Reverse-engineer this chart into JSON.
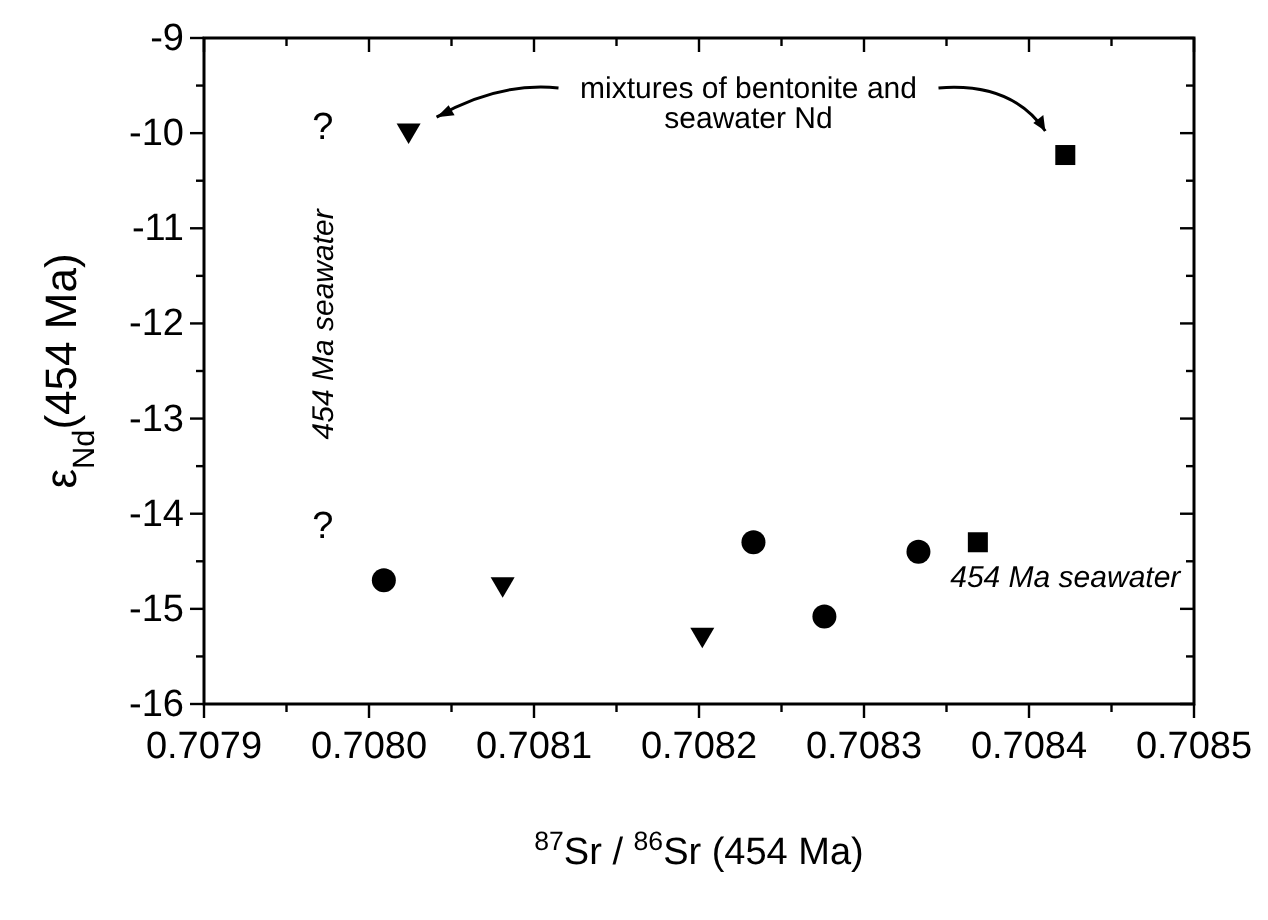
{
  "chart_data": {
    "type": "scatter",
    "xlabel": "$^{87}$Sr / $^{86}$Sr (454 Ma)",
    "ylabel": "ε$_{Nd}$(454 Ma)",
    "xlim": [
      0.7079,
      0.7085
    ],
    "ylim": [
      -16,
      -9
    ],
    "xticks": [
      0.7079,
      {
        "value": 0.70795,
        "label": null
      },
      {
        "value": 0.708,
        "label": "0.7080"
      },
      {
        "value": 0.70805,
        "label": null
      },
      0.7081,
      {
        "value": 0.70815,
        "label": null
      },
      0.7082,
      {
        "value": 0.70825,
        "label": null
      },
      0.7083,
      {
        "value": 0.70835,
        "label": null
      },
      0.7084,
      {
        "value": 0.70845,
        "label": null
      },
      0.7085
    ],
    "yticks": [
      -16,
      {
        "value": -15.5,
        "label": null
      },
      -15,
      {
        "value": -14.5,
        "label": null
      },
      -14,
      {
        "value": -13.5,
        "label": null
      },
      -13,
      {
        "value": -12.5,
        "label": null
      },
      -12,
      {
        "value": -11.5,
        "label": null
      },
      -11,
      {
        "value": -10.5,
        "label": null
      },
      -10,
      {
        "value": -9.5,
        "label": null
      },
      -9
    ],
    "grid": false,
    "series": [
      {
        "color": "#000000",
        "marker": "triangle",
        "x": [
          0.708024,
          0.708081,
          0.708202
        ],
        "values": [
          -10.0,
          -14.77,
          -15.3
        ]
      },
      {
        "color": "#000000",
        "marker": "circle",
        "x": [
          0.708009,
          0.708233,
          0.708276,
          0.708333
        ],
        "values": [
          -14.7,
          -14.3,
          -15.08,
          -14.4
        ]
      },
      {
        "color": "#000000",
        "marker": "square",
        "x": [
          0.708369,
          0.708422
        ],
        "values": [
          -14.3,
          -10.23
        ]
      }
    ],
    "annotations": [
      "mixtures of bentonite and seawater Nd",
      "454 Ma seawater",
      "454 Ma seawater",
      "?",
      "?"
    ]
  }
}
